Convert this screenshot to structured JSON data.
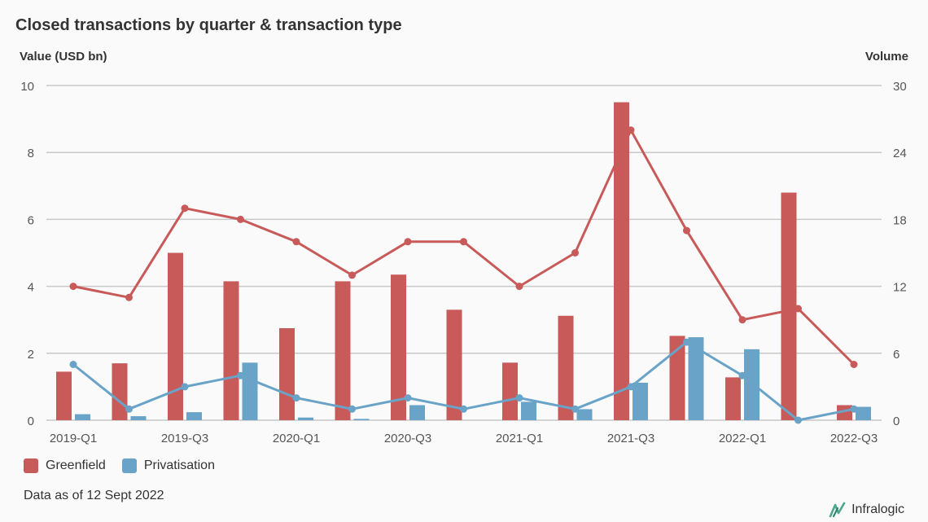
{
  "chart_data": {
    "type": "bar",
    "title": "Closed transactions by quarter & transaction type",
    "ylabel": "Value (USD bn)",
    "y2label": "Volume",
    "ylim": [
      0,
      10
    ],
    "y2lim": [
      0,
      30
    ],
    "yticks": [
      0,
      2,
      4,
      6,
      8,
      10
    ],
    "y2ticks": [
      0,
      6,
      12,
      18,
      24,
      30
    ],
    "categories": [
      "2019-Q1",
      "2019-Q2",
      "2019-Q3",
      "2019-Q4",
      "2020-Q1",
      "2020-Q2",
      "2020-Q3",
      "2020-Q4",
      "2021-Q1",
      "2021-Q2",
      "2021-Q3",
      "2021-Q4",
      "2022-Q1",
      "2022-Q2",
      "2022-Q3"
    ],
    "shown_tick_labels": [
      "2019-Q1",
      "2019-Q3",
      "2020-Q1",
      "2020-Q3",
      "2021-Q1",
      "2021-Q3",
      "2022-Q1",
      "2022-Q3"
    ],
    "series": [
      {
        "name": "Greenfield",
        "kind": "bar",
        "axis": "left",
        "color": "#c85a5a",
        "values": [
          1.45,
          1.7,
          5.0,
          4.15,
          2.75,
          4.15,
          4.35,
          3.3,
          1.72,
          3.12,
          9.5,
          2.52,
          1.28,
          6.8,
          0.45
        ]
      },
      {
        "name": "Privatisation",
        "kind": "bar",
        "axis": "left",
        "color": "#6aa3c8",
        "values": [
          0.18,
          0.12,
          0.24,
          1.72,
          0.08,
          0.04,
          0.45,
          0.0,
          0.55,
          0.33,
          1.12,
          2.48,
          2.12,
          0.0,
          0.4
        ]
      },
      {
        "name": "Greenfield",
        "kind": "line",
        "axis": "right",
        "color": "#c85a5a",
        "values": [
          12,
          11,
          19,
          18,
          16,
          13,
          16,
          16,
          12,
          15,
          26,
          17,
          9,
          10,
          5
        ]
      },
      {
        "name": "Privatisation",
        "kind": "line",
        "axis": "right",
        "color": "#6aa3c8",
        "values": [
          5,
          1,
          3,
          4,
          2,
          1,
          2,
          1,
          2,
          1,
          3,
          7,
          4,
          0,
          1
        ]
      }
    ],
    "grid": true,
    "legend_position": "bottom-left"
  },
  "legend": [
    {
      "label": "Greenfield",
      "color": "#c85a5a"
    },
    {
      "label": "Privatisation",
      "color": "#6aa3c8"
    }
  ],
  "note": "Data as of 12 Sept 2022",
  "brand": "Infralogic"
}
